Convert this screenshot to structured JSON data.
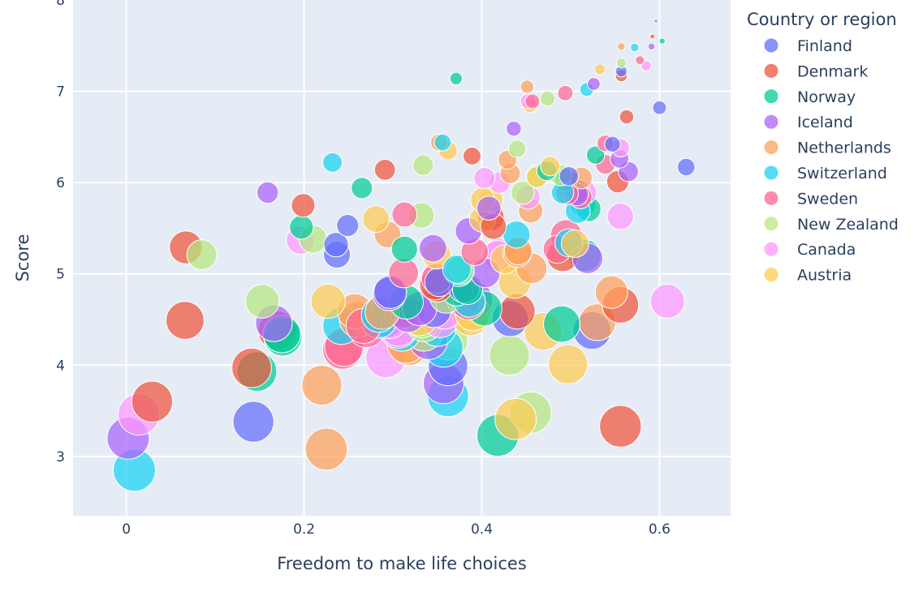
{
  "chart_data": {
    "type": "scatter",
    "xlabel": "Freedom to make life choices",
    "ylabel": "Score",
    "xlim": [
      -0.06,
      0.68
    ],
    "ylim": [
      2.35,
      8.0
    ],
    "x_ticks": [
      {
        "v": 0,
        "label": "0"
      },
      {
        "v": 0.2,
        "label": "0.2"
      },
      {
        "v": 0.4,
        "label": "0.4"
      },
      {
        "v": 0.6,
        "label": "0.6"
      }
    ],
    "y_ticks": [
      {
        "v": 3,
        "label": "3"
      },
      {
        "v": 4,
        "label": "4"
      },
      {
        "v": 5,
        "label": "5"
      },
      {
        "v": 6,
        "label": "6"
      },
      {
        "v": 7,
        "label": "7"
      },
      {
        "v": 8,
        "label": "8"
      }
    ],
    "grid": true,
    "bubble_size_encoding": "rank",
    "legend_title": "Country or region",
    "legend_position": "right",
    "colors": [
      "#636efa",
      "#EF553B",
      "#00cc96",
      "#ab63fa",
      "#FFA15A",
      "#19d3f3",
      "#FF6692",
      "#B6E880",
      "#FF97FF",
      "#FECB52"
    ],
    "series": [
      {
        "name": "Finland",
        "color": "#636efa",
        "points": [
          [
            0.596,
            7.77,
            1
          ],
          [
            0.557,
            7.22,
            11
          ],
          [
            0.547,
            6.42,
            21
          ],
          [
            0.498,
            6.07,
            31
          ],
          [
            0.249,
            5.53,
            41
          ],
          [
            0.236,
            5.32,
            51
          ],
          [
            0.237,
            5.21,
            61
          ],
          [
            0.352,
            4.91,
            71
          ],
          [
            0.38,
            4.85,
            81
          ],
          [
            0.297,
            4.8,
            91
          ],
          [
            0.346,
            4.6,
            101
          ],
          [
            0.432,
            4.51,
            111
          ],
          [
            0.524,
            4.38,
            121
          ],
          [
            0.362,
            3.99,
            131
          ],
          [
            0.143,
            3.38,
            141
          ],
          [
            0.63,
            6.17,
            26
          ],
          [
            0.6,
            6.82,
            16
          ],
          [
            0.508,
            5.9,
            46
          ],
          [
            0.38,
            4.71,
            96
          ],
          [
            0.292,
            4.5,
            116
          ]
        ]
      },
      {
        "name": "Denmark",
        "color": "#EF553B",
        "points": [
          [
            0.592,
            7.6,
            2
          ],
          [
            0.557,
            7.17,
            12
          ],
          [
            0.563,
            6.72,
            17
          ],
          [
            0.389,
            6.29,
            27
          ],
          [
            0.291,
            6.14,
            37
          ],
          [
            0.199,
            5.75,
            47
          ],
          [
            0.413,
            5.52,
            57
          ],
          [
            0.347,
            4.88,
            77
          ],
          [
            0.491,
            5.2,
            87
          ],
          [
            0.067,
            5.29,
            92
          ],
          [
            0.556,
            4.66,
            112
          ],
          [
            0.066,
            4.49,
            122
          ],
          [
            0.141,
            3.97,
            132
          ],
          [
            0.556,
            3.33,
            147
          ],
          [
            0.029,
            3.6,
            142
          ],
          [
            0.553,
            6.01,
            42
          ],
          [
            0.41,
            5.62,
            62
          ],
          [
            0.35,
            4.86,
            82
          ],
          [
            0.17,
            4.38,
            127
          ],
          [
            0.44,
            4.59,
            107
          ]
        ]
      },
      {
        "name": "Norway",
        "color": "#00cc96",
        "points": [
          [
            0.603,
            7.55,
            3
          ],
          [
            0.371,
            7.14,
            13
          ],
          [
            0.528,
            6.3,
            28
          ],
          [
            0.265,
            5.94,
            38
          ],
          [
            0.197,
            5.51,
            48
          ],
          [
            0.313,
            5.27,
            58
          ],
          [
            0.384,
            4.83,
            78
          ],
          [
            0.516,
            5.2,
            88
          ],
          [
            0.175,
            4.34,
            118
          ],
          [
            0.147,
            3.93,
            133
          ],
          [
            0.418,
            3.23,
            148
          ],
          [
            0.473,
            6.13,
            33
          ],
          [
            0.495,
            6.03,
            43
          ],
          [
            0.372,
            4.82,
            83
          ],
          [
            0.403,
            4.62,
            103
          ],
          [
            0.49,
            4.45,
            113
          ],
          [
            0.315,
            4.69,
            98
          ],
          [
            0.176,
            4.31,
            123
          ],
          [
            0.52,
            5.71,
            53
          ],
          [
            0.375,
            5.04,
            73
          ]
        ]
      },
      {
        "name": "Iceland",
        "color": "#ab63fa",
        "points": [
          [
            0.591,
            7.49,
            4
          ],
          [
            0.526,
            7.08,
            14
          ],
          [
            0.436,
            6.59,
            19
          ],
          [
            0.555,
            6.26,
            29
          ],
          [
            0.159,
            5.89,
            39
          ],
          [
            0.408,
            5.72,
            49
          ],
          [
            0.385,
            5.47,
            59
          ],
          [
            0.345,
            5.28,
            64
          ],
          [
            0.519,
            5.17,
            79
          ],
          [
            0.296,
            4.78,
            94
          ],
          [
            0.317,
            4.55,
            104
          ],
          [
            0.166,
            4.46,
            114
          ],
          [
            0.357,
            3.8,
            139
          ],
          [
            0.002,
            3.2,
            150
          ],
          [
            0.565,
            6.12,
            34
          ],
          [
            0.507,
            5.87,
            44
          ],
          [
            0.404,
            5.01,
            74
          ],
          [
            0.33,
            4.62,
            99
          ],
          [
            0.34,
            4.27,
            124
          ],
          [
            0.392,
            4.72,
            109
          ]
        ]
      },
      {
        "name": "Netherlands",
        "color": "#FFA15A",
        "points": [
          [
            0.557,
            7.49,
            5
          ],
          [
            0.451,
            7.05,
            15
          ],
          [
            0.352,
            6.44,
            25
          ],
          [
            0.429,
            6.25,
            30
          ],
          [
            0.455,
            5.69,
            50
          ],
          [
            0.294,
            5.43,
            60
          ],
          [
            0.441,
            5.25,
            65
          ],
          [
            0.456,
            5.06,
            80
          ],
          [
            0.546,
            4.8,
            90
          ],
          [
            0.257,
            4.59,
            105
          ],
          [
            0.53,
            4.47,
            115
          ],
          [
            0.315,
            4.23,
            125
          ],
          [
            0.22,
            3.78,
            135
          ],
          [
            0.225,
            3.08,
            149
          ],
          [
            0.432,
            6.1,
            35
          ],
          [
            0.512,
            6.05,
            40
          ],
          [
            0.44,
            5.23,
            70
          ],
          [
            0.288,
            4.58,
            100
          ],
          [
            0.26,
            4.5,
            110
          ],
          [
            0.318,
            4.21,
            128
          ]
        ]
      },
      {
        "name": "Switzerland",
        "color": "#19d3f3",
        "points": [
          [
            0.572,
            7.48,
            6
          ],
          [
            0.518,
            7.02,
            16
          ],
          [
            0.356,
            6.44,
            24
          ],
          [
            0.232,
            6.22,
            32
          ],
          [
            0.491,
            5.89,
            42
          ],
          [
            0.508,
            5.69,
            52
          ],
          [
            0.439,
            5.43,
            62
          ],
          [
            0.374,
            5.02,
            72
          ],
          [
            0.386,
            4.7,
            86
          ],
          [
            0.284,
            4.55,
            102
          ],
          [
            0.242,
            4.43,
            117
          ],
          [
            0.357,
            4.19,
            127
          ],
          [
            0.362,
            3.66,
            142
          ],
          [
            0.009,
            2.85,
            151
          ],
          [
            0.372,
            5.05,
            68
          ],
          [
            0.514,
            5.76,
            55
          ],
          [
            0.498,
            5.34,
            66
          ],
          [
            0.31,
            4.36,
            120
          ],
          [
            0.284,
            4.49,
            108
          ],
          [
            0.35,
            4.41,
            118
          ]
        ]
      },
      {
        "name": "Sweden",
        "color": "#FF6692",
        "points": [
          [
            0.578,
            7.34,
            7
          ],
          [
            0.457,
            6.89,
            18
          ],
          [
            0.539,
            6.43,
            23
          ],
          [
            0.539,
            6.2,
            33
          ],
          [
            0.496,
            5.88,
            43
          ],
          [
            0.313,
            5.65,
            53
          ],
          [
            0.392,
            5.24,
            63
          ],
          [
            0.312,
            5.01,
            75
          ],
          [
            0.495,
            5.42,
            85
          ],
          [
            0.267,
            4.43,
            105
          ],
          [
            0.243,
            4.17,
            130
          ],
          [
            0.494,
            6.98,
            20
          ],
          [
            0.511,
            5.84,
            45
          ],
          [
            0.349,
            4.95,
            76
          ],
          [
            0.385,
            4.68,
            96
          ],
          [
            0.311,
            4.6,
            106
          ],
          [
            0.27,
            4.4,
            121
          ],
          [
            0.245,
            4.2,
            128
          ],
          [
            0.35,
            4.88,
            84
          ],
          [
            0.485,
            5.27,
            67
          ]
        ]
      },
      {
        "name": "New Zealand",
        "color": "#B6E880",
        "points": [
          [
            0.557,
            7.31,
            8
          ],
          [
            0.474,
            6.92,
            19
          ],
          [
            0.44,
            6.37,
            26
          ],
          [
            0.334,
            6.19,
            36
          ],
          [
            0.446,
            5.89,
            46
          ],
          [
            0.332,
            5.64,
            56
          ],
          [
            0.21,
            5.38,
            66
          ],
          [
            0.085,
            5.21,
            76
          ],
          [
            0.153,
            4.7,
            96
          ],
          [
            0.335,
            4.46,
            116
          ],
          [
            0.431,
            4.11,
            136
          ],
          [
            0.455,
            3.48,
            146
          ],
          [
            0.462,
            6.07,
            41
          ],
          [
            0.375,
            5.04,
            71
          ],
          [
            0.36,
            4.75,
            93
          ],
          [
            0.335,
            4.36,
            121
          ],
          [
            0.333,
            4.5,
            113
          ],
          [
            0.362,
            4.27,
            129
          ],
          [
            0.489,
            6.08,
            38
          ],
          [
            0.495,
            5.98,
            48
          ]
        ]
      },
      {
        "name": "Canada",
        "color": "#FF97FF",
        "points": [
          [
            0.585,
            7.28,
            9
          ],
          [
            0.452,
            6.89,
            19
          ],
          [
            0.556,
            6.38,
            28
          ],
          [
            0.403,
            6.05,
            38
          ],
          [
            0.556,
            5.63,
            58
          ],
          [
            0.196,
            5.37,
            68
          ],
          [
            0.418,
            5.2,
            78
          ],
          [
            0.609,
            4.7,
            98
          ],
          [
            0.358,
            4.59,
            108
          ],
          [
            0.292,
            4.08,
            133
          ],
          [
            0.014,
            3.46,
            145
          ],
          [
            0.516,
            5.89,
            47
          ],
          [
            0.42,
            5.22,
            79
          ],
          [
            0.348,
            4.94,
            82
          ],
          [
            0.306,
            4.39,
            119
          ],
          [
            0.306,
            4.41,
            117
          ],
          [
            0.353,
            4.5,
            112
          ],
          [
            0.296,
            4.49,
            114
          ],
          [
            0.42,
            6.0,
            39
          ],
          [
            0.452,
            5.84,
            49
          ]
        ]
      },
      {
        "name": "Austria",
        "color": "#FECB52",
        "points": [
          [
            0.533,
            7.24,
            10
          ],
          [
            0.454,
            6.85,
            20
          ],
          [
            0.362,
            6.35,
            29
          ],
          [
            0.401,
            5.81,
            50
          ],
          [
            0.281,
            5.6,
            60
          ],
          [
            0.349,
            5.21,
            70
          ],
          [
            0.437,
            4.91,
            90
          ],
          [
            0.227,
            4.7,
            100
          ],
          [
            0.387,
            4.52,
            110
          ],
          [
            0.469,
            4.37,
            120
          ],
          [
            0.497,
            4.01,
            130
          ],
          [
            0.438,
            3.41,
            145
          ],
          [
            0.41,
            5.81,
            51
          ],
          [
            0.39,
            4.57,
            107
          ],
          [
            0.33,
            4.52,
            111
          ],
          [
            0.462,
            6.06,
            37
          ],
          [
            0.505,
            5.33,
            64
          ],
          [
            0.401,
            5.6,
            59
          ],
          [
            0.426,
            5.16,
            72
          ],
          [
            0.477,
            6.18,
            32
          ]
        ]
      }
    ]
  }
}
